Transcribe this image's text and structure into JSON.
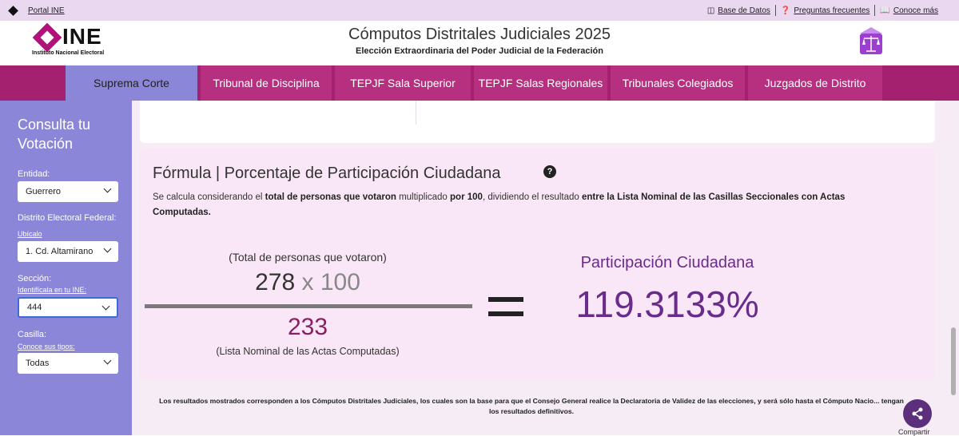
{
  "topbar": {
    "portal_label": "Portal INE",
    "links": [
      {
        "icon": "database-icon",
        "label": "Base de Datos"
      },
      {
        "icon": "question-circle-icon",
        "label": "Preguntas frecuentes"
      },
      {
        "icon": "book-icon",
        "label": "Conoce más"
      }
    ]
  },
  "header": {
    "logo_word": "INE",
    "logo_sub": "Instituto Nacional Electoral",
    "title": "Cómputos Distritales Judiciales 2025",
    "subtitle": "Elección Extraordinaria del Poder Judicial de la Federación",
    "brand_color": "#b0127a"
  },
  "nav": {
    "tabs": [
      {
        "label": "Suprema Corte",
        "active": true
      },
      {
        "label": "Tribunal de Disciplina"
      },
      {
        "label": "TEPJF Sala Superior"
      },
      {
        "label": "TEPJF Salas Regionales"
      },
      {
        "label": "Tribunales Colegiados"
      },
      {
        "label": "Juzgados de Distrito"
      }
    ],
    "color": "#a3216f",
    "active_color": "#8c86d8"
  },
  "sidebar": {
    "heading": "Consulta tu Votación",
    "entidad_label": "Entidad:",
    "entidad_value": "Guerrero",
    "distrito_label": "Distrito Electoral Federal:",
    "distrito_hint": "Ubícalo",
    "distrito_value": "1. Cd. Altamirano",
    "seccion_label": "Sección:",
    "seccion_hint": "Identifícala en tu INE:",
    "seccion_value": "444",
    "casilla_label": "Casilla:",
    "casilla_hint": "Conoce sus tipos:",
    "casilla_value": "Todas"
  },
  "formula": {
    "title": "Fórmula | Porcentaje de Participación Ciudadana",
    "desc_1": "Se calcula considerando el ",
    "desc_b1": "total de personas que votaron",
    "desc_2": " multiplicado ",
    "desc_b2": "por 100",
    "desc_3": ", dividiendo el resultado ",
    "desc_b3": "entre la Lista Nominal de las Casillas Seccionales con Actas Computadas.",
    "numerator_label": "(Total de personas que votaron)",
    "numerator_value": "278",
    "multiplier": "x 100",
    "denominator_value": "233",
    "denominator_label": "(Lista Nominal de las Actas Computadas)",
    "result_label": "Participación Ciudadana",
    "result_value": "119.3133%"
  },
  "note": "Los resultados mostrados corresponden a los Cómputos Distritales Judiciales, los cuales son la base para que el Consejo General realice la Declaratoria de Validez de las elecciones, y será sólo hasta el Cómputo Nacio... tengan los resultados definitivos.",
  "share_label": "Compartir"
}
